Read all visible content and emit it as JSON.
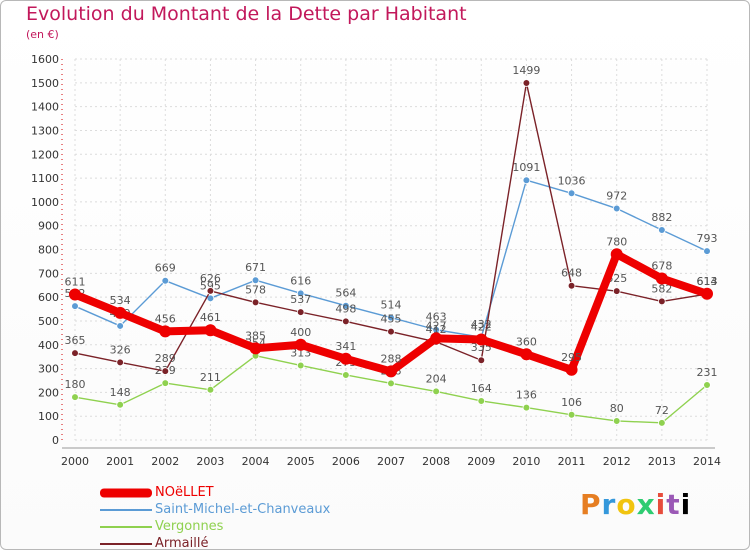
{
  "chart_data": {
    "type": "line",
    "title": "Evolution du Montant de la Dette par Habitant",
    "subtitle": "(en €)",
    "xlabel": "",
    "ylabel": "",
    "ylim": [
      0,
      1600
    ],
    "yticks": [
      0,
      100,
      200,
      300,
      400,
      500,
      600,
      700,
      800,
      900,
      1000,
      1100,
      1200,
      1300,
      1400,
      1500,
      1600
    ],
    "categories": [
      "2000",
      "2001",
      "2002",
      "2003",
      "2004",
      "2005",
      "2006",
      "2007",
      "2008",
      "2009",
      "2010",
      "2011",
      "2012",
      "2013",
      "2014"
    ],
    "grid": true,
    "legend_position": "bottom-left",
    "series": [
      {
        "name": "Saint-Michel-et-Chanveaux",
        "color": "#5b9bd5",
        "values": [
          562,
          479,
          669,
          595,
          671,
          616,
          564,
          514,
          463,
          432,
          1091,
          1036,
          972,
          882,
          793
        ]
      },
      {
        "name": "Vergonnes",
        "color": "#8fd14f",
        "values": [
          180,
          148,
          239,
          211,
          354,
          313,
          273,
          238,
          204,
          164,
          136,
          106,
          80,
          72,
          231
        ]
      },
      {
        "name": "Armaillé",
        "color": "#7b2228",
        "values": [
          365,
          326,
          289,
          626,
          578,
          537,
          498,
          455,
          412,
          335,
          1499,
          648,
          625,
          582,
          613
        ]
      },
      {
        "name": "NOëLLET",
        "color": "#ee0000",
        "values": [
          611,
          534,
          456,
          461,
          385,
          400,
          341,
          288,
          427,
          422,
          360,
          295,
          780,
          678,
          614
        ]
      }
    ]
  },
  "legend": {
    "items": [
      {
        "label": "NOëLLET",
        "color": "#ee0000"
      },
      {
        "label": "Saint-Michel-et-Chanveaux",
        "color": "#5b9bd5"
      },
      {
        "label": "Vergonnes",
        "color": "#8fd14f"
      },
      {
        "label": "Armaillé",
        "color": "#7b2228"
      }
    ]
  },
  "brand": {
    "letters": [
      "P",
      "r",
      "o",
      "x",
      "i",
      "t",
      "i"
    ]
  }
}
